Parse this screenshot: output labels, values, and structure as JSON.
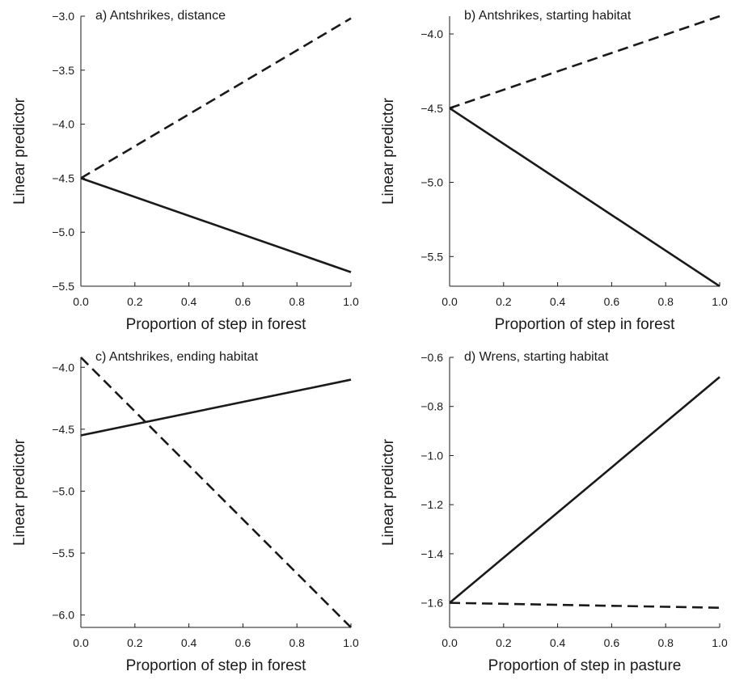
{
  "chart_data": [
    {
      "type": "line",
      "title": "a) Antshrikes, distance",
      "xlabel": "Proportion of step in forest",
      "ylabel": "Linear predictor",
      "xlim": [
        0,
        1
      ],
      "ylim": [
        -5.5,
        -3.0
      ],
      "xticks": [
        0.0,
        0.2,
        0.4,
        0.6,
        0.8,
        1.0
      ],
      "xtick_labels": [
        "0.0",
        "0.2",
        "0.4",
        "0.6",
        "0.8",
        "1.0"
      ],
      "yticks": [
        -5.5,
        -5.0,
        -4.5,
        -4.0,
        -3.5,
        -3.0
      ],
      "ytick_labels": [
        "−5.5",
        "−5.0",
        "−4.5",
        "−4.0",
        "−3.5",
        "−3.0"
      ],
      "series": [
        {
          "style": "solid",
          "x": [
            0,
            1
          ],
          "y": [
            -4.5,
            -5.37
          ]
        },
        {
          "style": "dashed",
          "x": [
            0,
            1
          ],
          "y": [
            -4.5,
            -3.02
          ]
        }
      ]
    },
    {
      "type": "line",
      "title": "b) Antshrikes, starting habitat",
      "xlabel": "Proportion of step in forest",
      "ylabel": "Linear predictor",
      "xlim": [
        0,
        1
      ],
      "ylim": [
        -5.7,
        -3.88
      ],
      "xticks": [
        0.0,
        0.2,
        0.4,
        0.6,
        0.8,
        1.0
      ],
      "xtick_labels": [
        "0.0",
        "0.2",
        "0.4",
        "0.6",
        "0.8",
        "1.0"
      ],
      "yticks": [
        -5.5,
        -5.0,
        -4.5,
        -4.0
      ],
      "ytick_labels": [
        "−5.5",
        "−5.0",
        "−4.5",
        "−4.0"
      ],
      "series": [
        {
          "style": "solid",
          "x": [
            0,
            1
          ],
          "y": [
            -4.5,
            -5.7
          ]
        },
        {
          "style": "dashed",
          "x": [
            0,
            1
          ],
          "y": [
            -4.5,
            -3.88
          ]
        }
      ]
    },
    {
      "type": "line",
      "title": "c) Antshrikes, ending habitat",
      "xlabel": "Proportion of step in forest",
      "ylabel": "Linear predictor",
      "xlim": [
        0,
        1
      ],
      "ylim": [
        -6.1,
        -3.92
      ],
      "xticks": [
        0.0,
        0.2,
        0.4,
        0.6,
        0.8,
        1.0
      ],
      "xtick_labels": [
        "0.0",
        "0.2",
        "0.4",
        "0.6",
        "0.8",
        "1.0"
      ],
      "yticks": [
        -6.0,
        -5.5,
        -5.0,
        -4.5,
        -4.0
      ],
      "ytick_labels": [
        "−6.0",
        "−5.5",
        "−5.0",
        "−4.5",
        "−4.0"
      ],
      "series": [
        {
          "style": "solid",
          "x": [
            0,
            1
          ],
          "y": [
            -4.55,
            -4.1
          ]
        },
        {
          "style": "dashed",
          "x": [
            0,
            1
          ],
          "y": [
            -3.92,
            -6.1
          ]
        }
      ]
    },
    {
      "type": "line",
      "title": "d) Wrens, starting habitat",
      "xlabel": "Proportion of step in pasture",
      "ylabel": "Linear predictor",
      "xlim": [
        0,
        1
      ],
      "ylim": [
        -1.7,
        -0.6
      ],
      "xticks": [
        0.0,
        0.2,
        0.4,
        0.6,
        0.8,
        1.0
      ],
      "xtick_labels": [
        "0.0",
        "0.2",
        "0.4",
        "0.6",
        "0.8",
        "1.0"
      ],
      "yticks": [
        -1.6,
        -1.4,
        -1.2,
        -1.0,
        -0.8,
        -0.6
      ],
      "ytick_labels": [
        "−1.6",
        "−1.4",
        "−1.2",
        "−1.0",
        "−0.8",
        "−0.6"
      ],
      "series": [
        {
          "style": "solid",
          "x": [
            0,
            1
          ],
          "y": [
            -1.6,
            -0.68
          ]
        },
        {
          "style": "dashed",
          "x": [
            0,
            1
          ],
          "y": [
            -1.6,
            -1.62
          ]
        }
      ]
    }
  ]
}
